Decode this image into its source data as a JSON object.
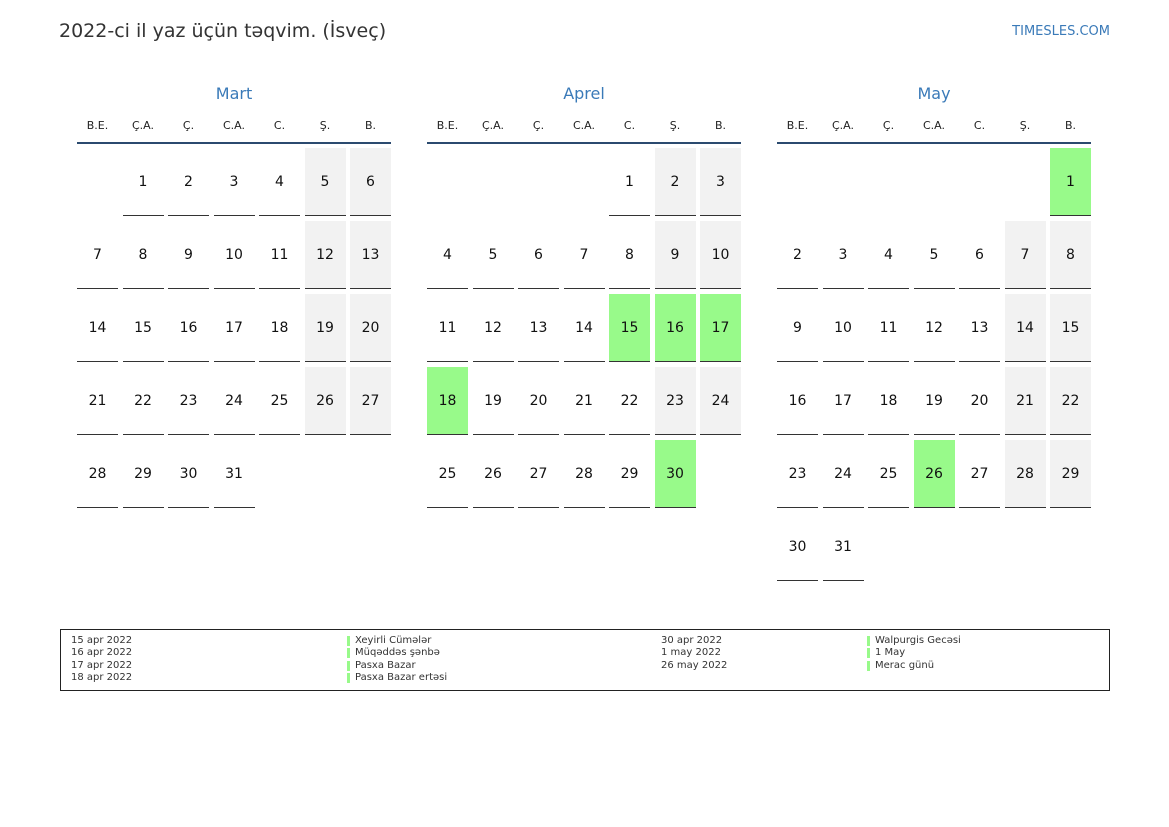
{
  "header": {
    "title": "2022-ci il yaz üçün təqvim. (İsveç)",
    "site": "TIMESLES.COM"
  },
  "weekdays": [
    "B.E.",
    "Ç.A.",
    "Ç.",
    "C.A.",
    "C.",
    "Ş.",
    "B."
  ],
  "months": [
    {
      "name": "Mart",
      "weeks": [
        [
          null,
          1,
          2,
          3,
          4,
          5,
          6
        ],
        [
          7,
          8,
          9,
          10,
          11,
          12,
          13
        ],
        [
          14,
          15,
          16,
          17,
          18,
          19,
          20
        ],
        [
          21,
          22,
          23,
          24,
          25,
          26,
          27
        ],
        [
          28,
          29,
          30,
          31,
          null,
          null,
          null
        ]
      ],
      "holidays": []
    },
    {
      "name": "Aprel",
      "weeks": [
        [
          null,
          null,
          null,
          null,
          1,
          2,
          3
        ],
        [
          4,
          5,
          6,
          7,
          8,
          9,
          10
        ],
        [
          11,
          12,
          13,
          14,
          15,
          16,
          17
        ],
        [
          18,
          19,
          20,
          21,
          22,
          23,
          24
        ],
        [
          25,
          26,
          27,
          28,
          29,
          30,
          null
        ]
      ],
      "holidays": [
        15,
        16,
        17,
        18,
        30
      ]
    },
    {
      "name": "May",
      "weeks": [
        [
          null,
          null,
          null,
          null,
          null,
          null,
          1
        ],
        [
          2,
          3,
          4,
          5,
          6,
          7,
          8
        ],
        [
          9,
          10,
          11,
          12,
          13,
          14,
          15
        ],
        [
          16,
          17,
          18,
          19,
          20,
          21,
          22
        ],
        [
          23,
          24,
          25,
          26,
          27,
          28,
          29
        ],
        [
          30,
          31,
          null,
          null,
          null,
          null,
          null
        ]
      ],
      "holidays": [
        1,
        26
      ]
    }
  ],
  "legend": [
    {
      "date": "15 apr 2022",
      "name": "Xeyirli Cümələr"
    },
    {
      "date": "16 apr 2022",
      "name": "Müqəddəs şənbə"
    },
    {
      "date": "17 apr 2022",
      "name": "Pasxa Bazar"
    },
    {
      "date": "18 apr 2022",
      "name": "Pasxa Bazar ertəsi"
    },
    {
      "date": "30 apr 2022",
      "name": "Walpurgis Gecəsi"
    },
    {
      "date": "1 may 2022",
      "name": "1 May"
    },
    {
      "date": "26 may 2022",
      "name": "Merac günü"
    }
  ]
}
